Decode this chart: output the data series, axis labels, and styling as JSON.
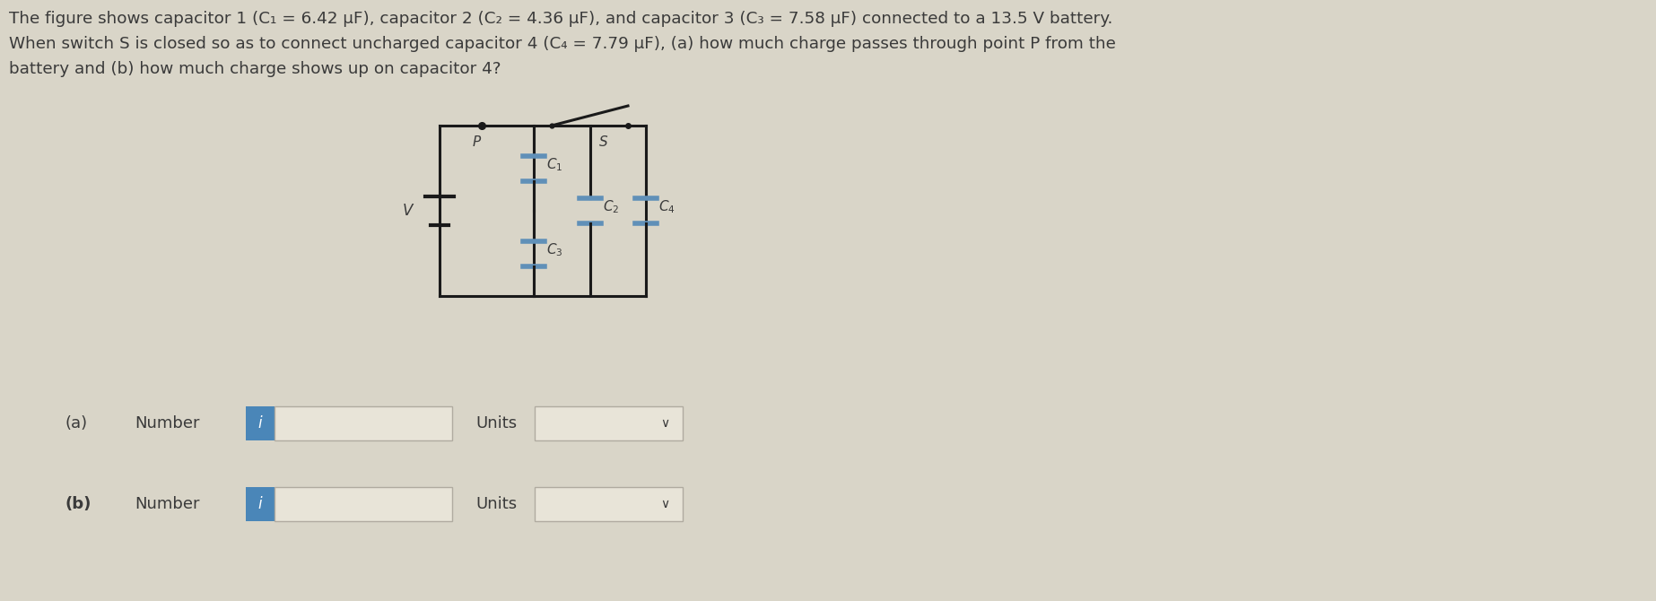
{
  "bg_color": "#d9d5c8",
  "text_color": "#3a3a3a",
  "title_lines": [
    "The figure shows capacitor 1 (C₁ = 6.42 μF), capacitor 2 (C₂ = 4.36 μF), and capacitor 3 (C₃ = 7.58 μF) connected to a 13.5 V battery.",
    "When switch S is closed so as to connect uncharged capacitor 4 (C₄ = 7.79 μF), (a) how much charge passes through point P from the",
    "battery and (b) how much charge shows up on capacitor 4?"
  ],
  "input_box_color": "#d9d5c8",
  "info_button_color": "#4a86b8",
  "circuit_line_color": "#1a1a1a",
  "capacitor_plate_color": "#6090b8",
  "dropdown_arrow": "∨"
}
